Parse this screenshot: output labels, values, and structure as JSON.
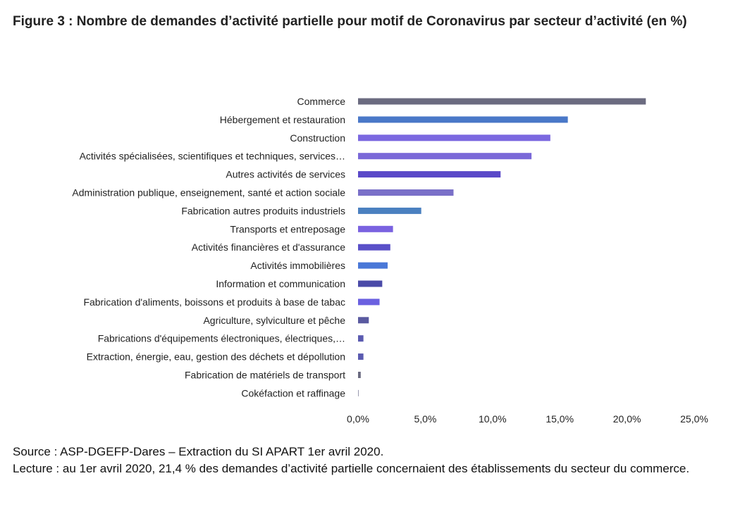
{
  "title": "Figure 3 : Nombre de demandes d’activité partielle pour motif de Coronavirus par secteur d’activité (en %)",
  "chart_data": {
    "type": "bar",
    "orientation": "horizontal",
    "categories": [
      "Commerce",
      "Hébergement et restauration",
      "Construction",
      "Activités spécialisées, scientifiques et techniques, services…",
      "Autres activités de services",
      "Administration publique, enseignement, santé et action sociale",
      "Fabrication autres produits industriels",
      "Transports et entreposage",
      "Activités financières et d'assurance",
      "Activités immobilières",
      "Information et communication",
      "Fabrication d'aliments, boissons et produits à base de tabac",
      "Agriculture, sylviculture et pêche",
      "Fabrications d'équipements électroniques, électriques,…",
      "Extraction, énergie, eau, gestion des déchets et dépollution",
      "Fabrication de matériels de transport",
      "Cokéfaction et raffinage"
    ],
    "values": [
      21.4,
      15.6,
      14.3,
      12.9,
      10.6,
      7.1,
      4.7,
      2.6,
      2.4,
      2.2,
      1.8,
      1.6,
      0.8,
      0.4,
      0.4,
      0.2,
      0.05
    ],
    "colors": [
      "#6b6b80",
      "#4a78c8",
      "#7b68e0",
      "#7a68d8",
      "#5a48c8",
      "#7a70c8",
      "#4a80c0",
      "#7a62e0",
      "#5a50c8",
      "#4a78d8",
      "#4a4aa8",
      "#6a60e0",
      "#5a5aa0",
      "#5a5ab0",
      "#5a5ab0",
      "#6a6a80",
      "#9a9ab0"
    ],
    "xlim": [
      0,
      25
    ],
    "xticks": [
      "0,0%",
      "5,0%",
      "10,0%",
      "15,0%",
      "20,0%",
      "25,0%"
    ],
    "xlabel": "",
    "ylabel": "",
    "grid": false
  },
  "footer": {
    "source": "Source : ASP-DGEFP-Dares – Extraction du SI APART 1er avril 2020.",
    "reading": "Lecture : au 1er avril 2020, 21,4 % des demandes d’activité partielle concernaient des établissements du secteur du commerce."
  }
}
